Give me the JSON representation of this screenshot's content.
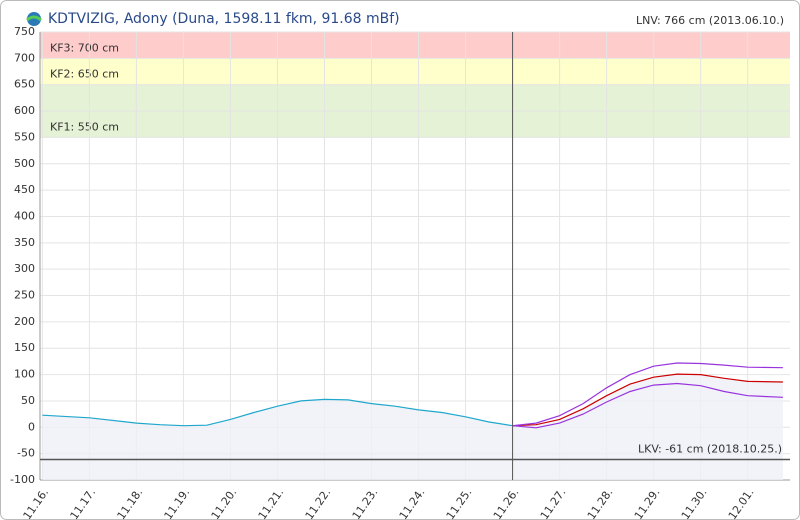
{
  "chart_data": {
    "type": "line",
    "title": "KDTVIZIG, Adony (Duna, 1598.11 fkm, 91.68 mBf)",
    "note": "LNV: 766 cm (2013.06.10.)",
    "xlim": [
      -0.05,
      15.9
    ],
    "xticks": [
      {
        "value": 0,
        "label": "11.16."
      },
      {
        "value": 1,
        "label": "11.17."
      },
      {
        "value": 2,
        "label": "11.18."
      },
      {
        "value": 3,
        "label": "11.19."
      },
      {
        "value": 4,
        "label": "11.20."
      },
      {
        "value": 5,
        "label": "11.21."
      },
      {
        "value": 6,
        "label": "11.22."
      },
      {
        "value": 7,
        "label": "11.23."
      },
      {
        "value": 8,
        "label": "11.24."
      },
      {
        "value": 9,
        "label": "11.25."
      },
      {
        "value": 10,
        "label": "11.26."
      },
      {
        "value": 11,
        "label": "11.27."
      },
      {
        "value": 12,
        "label": "11.28."
      },
      {
        "value": 13,
        "label": "11.29."
      },
      {
        "value": 14,
        "label": "11.30."
      },
      {
        "value": 15,
        "label": "12.01."
      }
    ],
    "ylim": [
      -100,
      750
    ],
    "yticks": [
      -100,
      -50,
      0,
      50,
      100,
      150,
      200,
      250,
      300,
      350,
      400,
      450,
      500,
      550,
      600,
      650,
      700,
      750
    ],
    "grid": true,
    "bands": [
      {
        "label": "KF3: 700 cm",
        "from": 700,
        "to": 750,
        "color": "#ffcccc"
      },
      {
        "label": "KF2: 650 cm",
        "from": 650,
        "to": 700,
        "color": "#ffffcc"
      },
      {
        "label": "KF1: 550 cm",
        "from": 550,
        "to": 650,
        "color": "#e5f2d5"
      }
    ],
    "hlines": [
      {
        "value": -61,
        "label": "LKV: -61 cm (2018.10.25.)",
        "color": "#555555"
      }
    ],
    "vline": 10,
    "series": [
      {
        "color": "#20a7cc",
        "area": true,
        "x": [
          0,
          1,
          2,
          2.5,
          3,
          3.5,
          4,
          4.5,
          5,
          5.5,
          6,
          6.5,
          7,
          7.5,
          8,
          8.5,
          9,
          9.5,
          10
        ],
        "values": [
          23,
          18,
          8,
          5,
          3,
          4,
          15,
          28,
          40,
          50,
          53,
          52,
          45,
          40,
          33,
          28,
          20,
          10,
          3
        ]
      },
      {
        "color": "#cc0000",
        "area": true,
        "x": [
          10,
          10.5,
          11,
          11.5,
          12,
          12.5,
          13,
          13.5,
          14,
          14.5,
          15,
          15.75
        ],
        "values": [
          3,
          5,
          15,
          35,
          60,
          82,
          95,
          101,
          100,
          93,
          87,
          86
        ]
      },
      {
        "color": "#9933dd",
        "x": [
          10,
          10.5,
          11,
          11.5,
          12,
          12.5,
          13,
          13.5,
          14,
          14.5,
          15,
          15.75
        ],
        "values": [
          3,
          8,
          22,
          45,
          75,
          100,
          116,
          122,
          121,
          118,
          114,
          113
        ]
      },
      {
        "color": "#9933dd",
        "x": [
          10,
          10.5,
          11,
          11.5,
          12,
          12.5,
          13,
          13.5,
          14,
          14.5,
          15,
          15.75
        ],
        "values": [
          3,
          -1,
          8,
          25,
          48,
          68,
          80,
          83,
          79,
          68,
          60,
          57
        ]
      }
    ]
  }
}
